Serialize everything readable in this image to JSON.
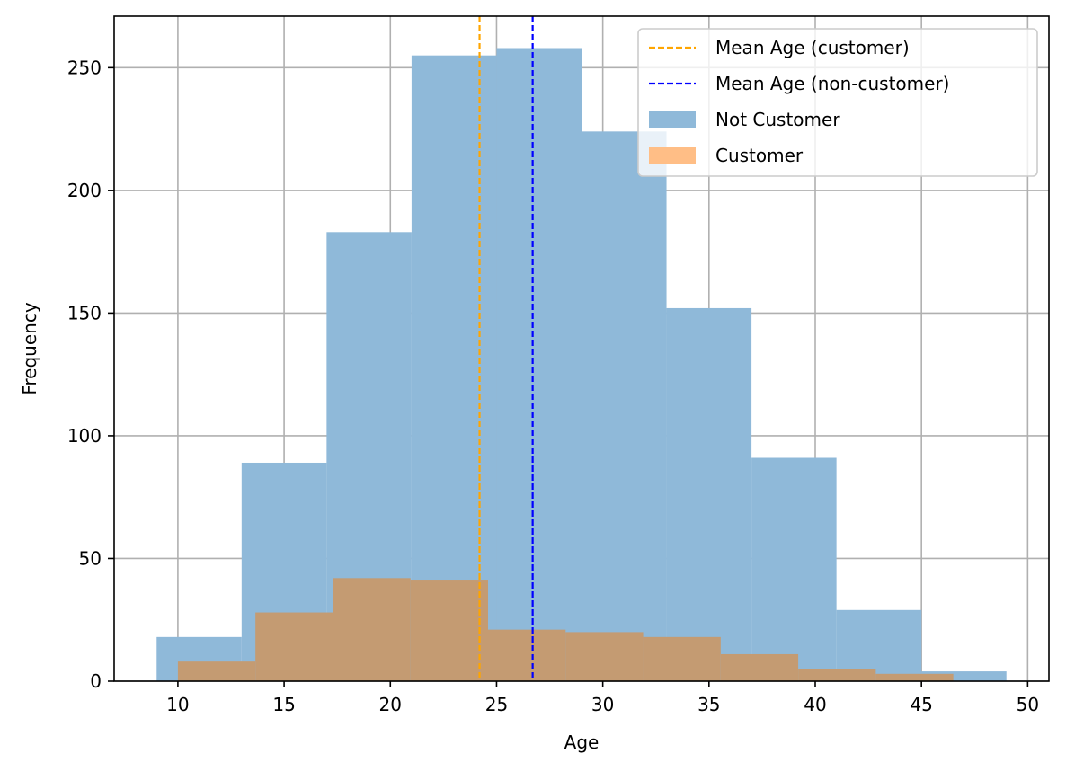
{
  "chart_data": {
    "type": "bar",
    "xlabel": "Age",
    "ylabel": "Frequency",
    "xlim": [
      7,
      51
    ],
    "ylim": [
      0,
      271
    ],
    "xticks": [
      10,
      15,
      20,
      25,
      30,
      35,
      40,
      45,
      50
    ],
    "yticks": [
      0,
      50,
      100,
      150,
      200,
      250
    ],
    "grid": true,
    "legend_position": "top-right",
    "series": [
      {
        "name": "Not Customer",
        "color": "#8fb9d9",
        "bin_edges": [
          9,
          13,
          17,
          21,
          25,
          29,
          33,
          37,
          41,
          45,
          49
        ],
        "values": [
          18,
          89,
          183,
          255,
          258,
          224,
          152,
          91,
          29,
          4
        ]
      },
      {
        "name": "Customer",
        "color": "#c49b72",
        "bin_edges": [
          10,
          13.65,
          17.3,
          20.95,
          24.6,
          28.25,
          31.9,
          35.55,
          39.2,
          42.85,
          46.5
        ],
        "values": [
          8,
          28,
          42,
          41,
          21,
          20,
          18,
          11,
          5,
          3
        ]
      }
    ],
    "vlines": [
      {
        "name": "Mean Age (customer)",
        "x": 24.2,
        "color": "#ffa500"
      },
      {
        "name": "Mean Age (non-customer)",
        "x": 26.7,
        "color": "#0000ff"
      }
    ],
    "legend": [
      {
        "label": "Mean Age (customer)",
        "kind": "line",
        "color": "#ffa500"
      },
      {
        "label": "Mean Age (non-customer)",
        "kind": "line",
        "color": "#0000ff"
      },
      {
        "label": "Not Customer",
        "kind": "patch",
        "color": "#8fb9d9"
      },
      {
        "label": "Customer",
        "kind": "patch",
        "color": "#ffbe86"
      }
    ]
  }
}
